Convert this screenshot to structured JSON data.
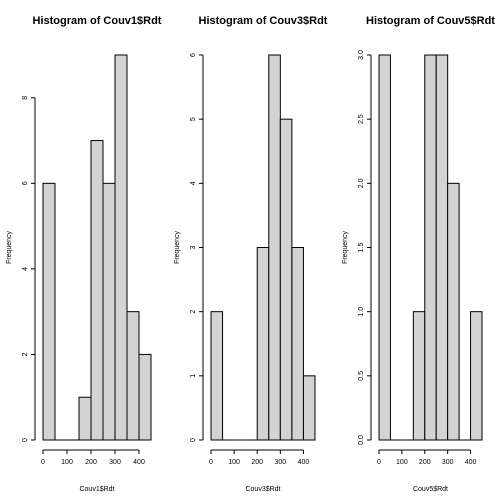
{
  "chart_data": [
    {
      "type": "bar",
      "title": "Histogram of Couv1$Rdt",
      "xlabel": "Couv1$Rdt",
      "ylabel": "Frequency",
      "bin_edges": [
        0,
        50,
        100,
        150,
        200,
        250,
        300,
        350,
        400,
        450
      ],
      "values": [
        6,
        0,
        0,
        1,
        7,
        6,
        9,
        3,
        2
      ],
      "xlim": [
        0,
        450
      ],
      "ylim": [
        0,
        9
      ],
      "xticks": [
        0,
        100,
        200,
        300,
        400
      ],
      "yticks": [
        0,
        2,
        4,
        6,
        8
      ],
      "ytick_labels": [
        "0",
        "2",
        "4",
        "6",
        "8"
      ],
      "bar_color": "#d3d3d3",
      "grid": false
    },
    {
      "type": "bar",
      "title": "Histogram of Couv3$Rdt",
      "xlabel": "Couv3$Rdt",
      "ylabel": "Frequency",
      "bin_edges": [
        0,
        50,
        100,
        150,
        200,
        250,
        300,
        350,
        400,
        450
      ],
      "values": [
        2,
        0,
        0,
        0,
        3,
        6,
        5,
        3,
        1
      ],
      "xlim": [
        0,
        450
      ],
      "ylim": [
        0,
        6
      ],
      "xticks": [
        0,
        100,
        200,
        300,
        400
      ],
      "yticks": [
        0,
        1,
        2,
        3,
        4,
        5,
        6
      ],
      "ytick_labels": [
        "0",
        "1",
        "2",
        "3",
        "4",
        "5",
        "6"
      ],
      "bar_color": "#d3d3d3",
      "grid": false
    },
    {
      "type": "bar",
      "title": "Histogram of Couv5$Rdt",
      "xlabel": "Couv5$Rdt",
      "ylabel": "Frequency",
      "bin_edges": [
        0,
        50,
        100,
        150,
        200,
        250,
        300,
        350,
        400,
        450
      ],
      "values": [
        3,
        0,
        0,
        1,
        3,
        3,
        2,
        0,
        1
      ],
      "xlim": [
        0,
        450
      ],
      "ylim": [
        0,
        3
      ],
      "xticks": [
        0,
        100,
        200,
        300,
        400
      ],
      "yticks": [
        0,
        0.5,
        1,
        1.5,
        2,
        2.5,
        3
      ],
      "ytick_labels": [
        "0.0",
        "0.5",
        "1.0",
        "1.5",
        "2.0",
        "2.5",
        "3.0"
      ],
      "bar_color": "#d3d3d3",
      "grid": false
    }
  ]
}
